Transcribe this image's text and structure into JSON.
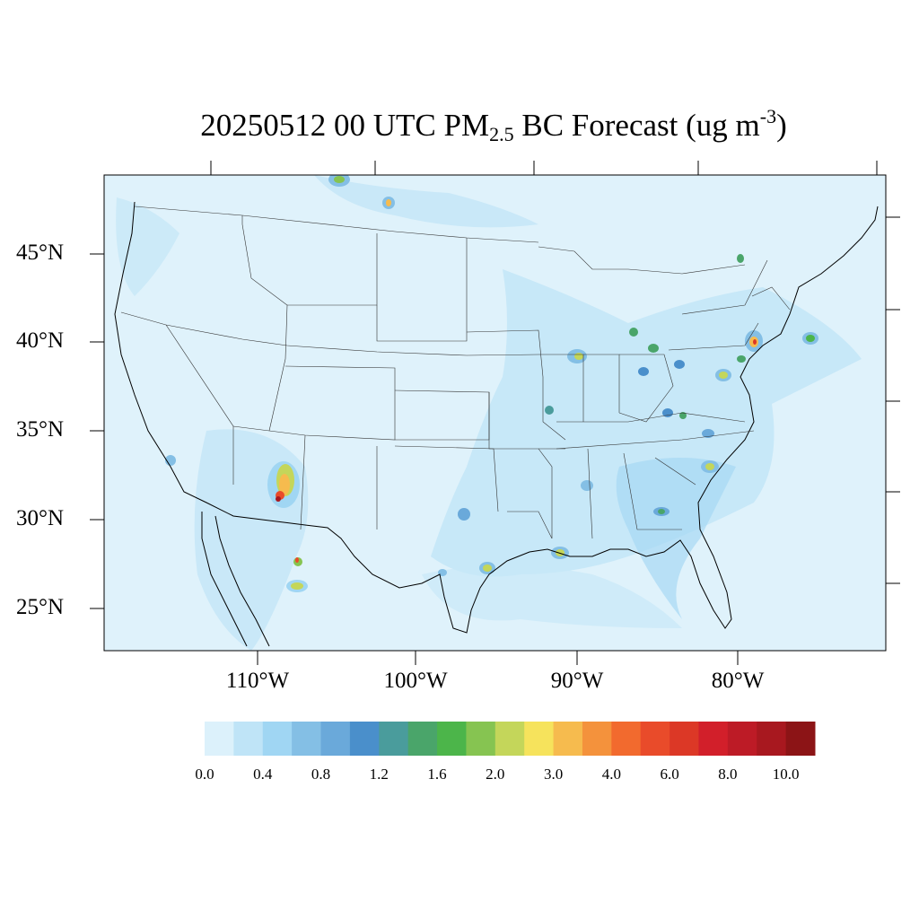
{
  "title": {
    "main": "20250512 00 UTC PM",
    "sub": "2.5",
    "after": " BC Forecast (ug m",
    "sup": "-3",
    "end": ")"
  },
  "lat_labels": [
    "45°N",
    "40°N",
    "35°N",
    "30°N",
    "25°N"
  ],
  "lon_labels": [
    "110°W",
    "100°W",
    "90°W",
    "80°W"
  ],
  "colorbar": {
    "labels": [
      "0.0",
      "0.4",
      "0.8",
      "1.2",
      "1.6",
      "2.0",
      "3.0",
      "4.0",
      "6.0",
      "8.0",
      "10.0"
    ],
    "colors": [
      "#dcf1fb",
      "#bfe4f7",
      "#a0d6f3",
      "#84bfe5",
      "#6aa9da",
      "#4a8fcb",
      "#4a9c9c",
      "#4aa56a",
      "#4cb54a",
      "#86c451",
      "#c4d65a",
      "#f6e35c",
      "#f6bb4e",
      "#f4923c",
      "#f26a2e",
      "#e94b2a",
      "#dc3826",
      "#d21f2a",
      "#bd1b26",
      "#a8181f",
      "#8c1416"
    ]
  },
  "map": {
    "background_color": "#dff2fb",
    "plume_color": "#b6dff5",
    "border_color": "#555555"
  }
}
